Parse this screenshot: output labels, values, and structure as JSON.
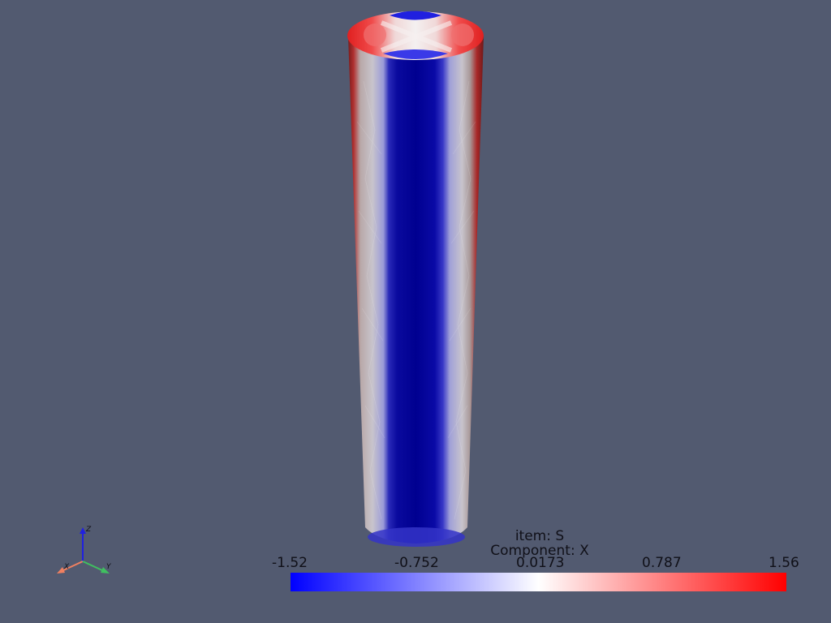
{
  "scalar_bar": {
    "title_line1": "item: S",
    "title_line2": "Component: X",
    "ticks": [
      "-1.52",
      "-0.752",
      "0.0173",
      "0.787",
      "1.56"
    ],
    "min": -1.52,
    "max": 1.56,
    "colormap": [
      "#0000ff",
      "#ffffff",
      "#ff0000"
    ]
  },
  "orientation_axes": {
    "x_label": "X",
    "y_label": "Y",
    "z_label": "Z",
    "x_color": "#f08060",
    "y_color": "#40c060",
    "z_color": "#2020e0"
  },
  "colors": {
    "background": "#525a70"
  }
}
